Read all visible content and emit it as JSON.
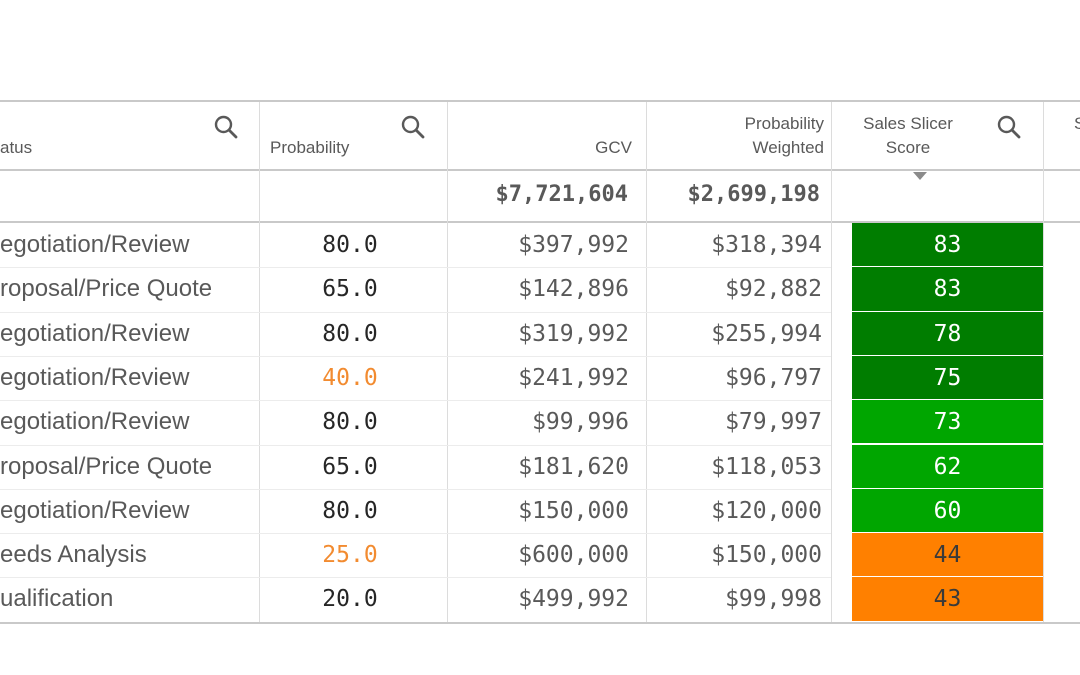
{
  "columns": {
    "status": {
      "label": "atus"
    },
    "probability": {
      "label": "Probability"
    },
    "gcv": {
      "label": "GCV"
    },
    "prob_weighted": {
      "label_line1": "Probability",
      "label_line2": "Weighted"
    },
    "score": {
      "label_line1": "Sales Slicer",
      "label_line2": "Score"
    },
    "next": {
      "label": "S"
    }
  },
  "icons": {
    "search": "search-icon",
    "sort": "sort-descending-icon"
  },
  "totals": {
    "gcv": "$7,721,604",
    "prob_weighted": "$2,699,198"
  },
  "colors": {
    "dark_green": "#007d00",
    "green": "#00a600",
    "orange": "#ff8000",
    "low_probability_text": "#f28b30"
  },
  "rows": [
    {
      "status": "egotiation/Review",
      "probability": "80.0",
      "gcv": "$397,992",
      "weighted": "$318,394",
      "score": "83",
      "score_color": "#007d00",
      "prob_low": false
    },
    {
      "status": "roposal/Price Quote",
      "probability": "65.0",
      "gcv": "$142,896",
      "weighted": "$92,882",
      "score": "83",
      "score_color": "#007d00",
      "prob_low": false
    },
    {
      "status": "egotiation/Review",
      "probability": "80.0",
      "gcv": "$319,992",
      "weighted": "$255,994",
      "score": "78",
      "score_color": "#007d00",
      "prob_low": false
    },
    {
      "status": "egotiation/Review",
      "probability": "40.0",
      "gcv": "$241,992",
      "weighted": "$96,797",
      "score": "75",
      "score_color": "#007d00",
      "prob_low": true
    },
    {
      "status": "egotiation/Review",
      "probability": "80.0",
      "gcv": "$99,996",
      "weighted": "$79,997",
      "score": "73",
      "score_color": "#00a600",
      "prob_low": false
    },
    {
      "status": "roposal/Price Quote",
      "probability": "65.0",
      "gcv": "$181,620",
      "weighted": "$118,053",
      "score": "62",
      "score_color": "#00a600",
      "prob_low": false
    },
    {
      "status": "egotiation/Review",
      "probability": "80.0",
      "gcv": "$150,000",
      "weighted": "$120,000",
      "score": "60",
      "score_color": "#00a600",
      "prob_low": false
    },
    {
      "status": "eeds Analysis",
      "probability": "25.0",
      "gcv": "$600,000",
      "weighted": "$150,000",
      "score": "44",
      "score_color": "#ff8000",
      "prob_low": true
    },
    {
      "status": "ualification",
      "probability": "20.0",
      "gcv": "$499,992",
      "weighted": "$99,998",
      "score": "43",
      "score_color": "#ff8000",
      "prob_low": false
    }
  ]
}
